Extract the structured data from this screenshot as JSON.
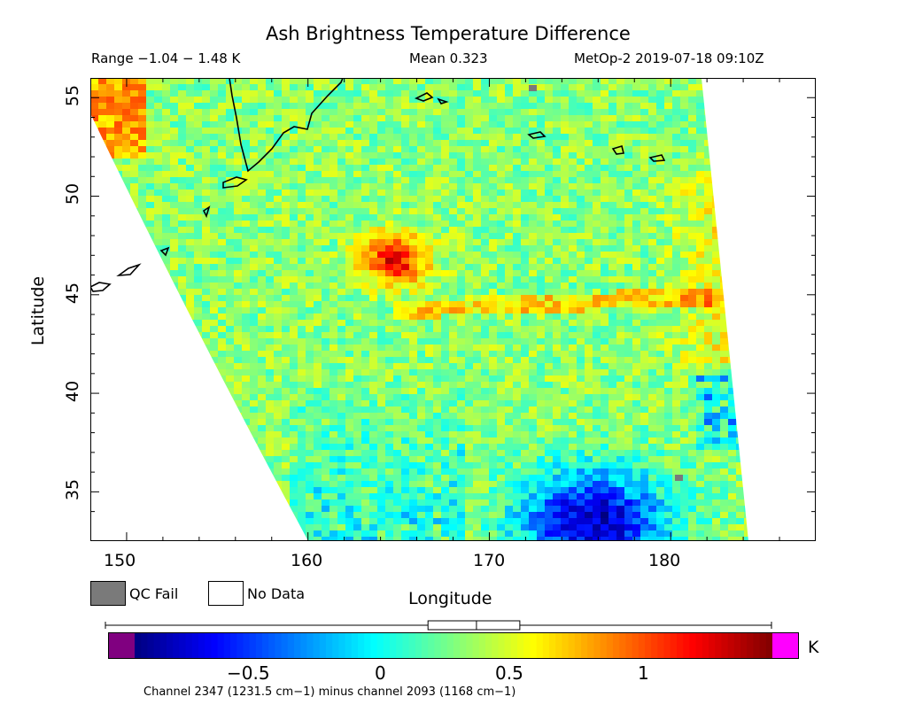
{
  "header": {
    "title": "Ash Brightness Temperature Difference",
    "range": "Range −1.04 − 1.48 K",
    "mean": "Mean 0.323",
    "satellite": "MetOp-2 2019-07-18 09:10Z"
  },
  "axes": {
    "ylabel": "Latitude",
    "xlabel": "Longitude",
    "lat_ticks": [
      "35",
      "40",
      "45",
      "50",
      "55"
    ],
    "lon_ticks": [
      "150",
      "160",
      "170",
      "180"
    ],
    "lon_range": [
      148,
      188
    ],
    "lat_range": [
      32.5,
      56
    ]
  },
  "legend": {
    "qc_fail": "QC Fail",
    "no_data": "No Data",
    "qc_fail_color": "#7a7a7a",
    "no_data_color": "#ffffff"
  },
  "colorbar": {
    "ticks": [
      "−0.5",
      "0",
      "0.5",
      "1"
    ],
    "tick_values": [
      -0.5,
      0,
      0.5,
      1
    ],
    "unit": "K",
    "vmin": -1.0,
    "vmax": 1.5,
    "under_color": "#800080",
    "over_color": "#ff00ff",
    "boxplot": {
      "min": -1.04,
      "q1": 0.15,
      "median": 0.34,
      "q3": 0.51,
      "max": 1.48
    }
  },
  "caption": "Channel 2347 (1231.5 cm−1) minus channel 2093 (1168 cm−1)",
  "map": {
    "colormap": "jet",
    "features": {
      "ash_plume_center": {
        "lon": 164.5,
        "lat": 46.9,
        "value": 1.2
      },
      "blue_region_center": {
        "lon": 175.5,
        "lat": 33.6,
        "value": -0.85
      }
    }
  }
}
